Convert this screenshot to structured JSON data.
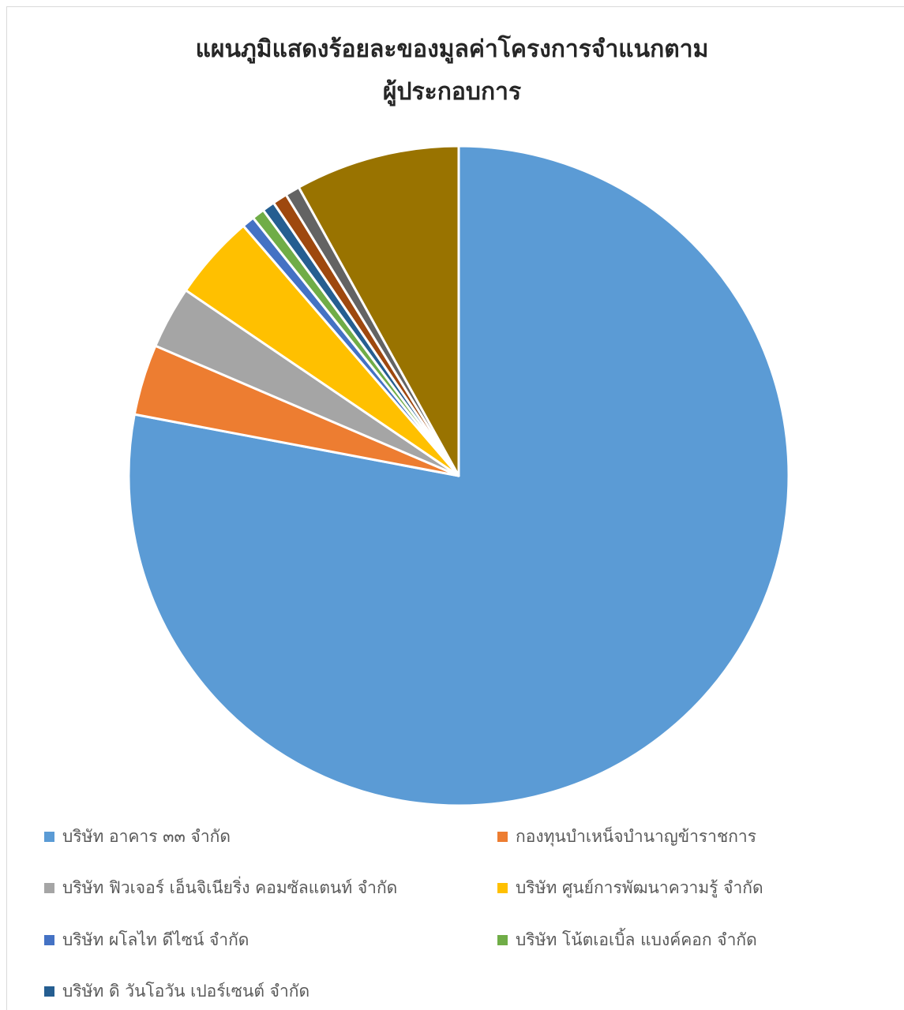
{
  "chart_data": {
    "type": "pie",
    "title_lines": [
      "แผนภูมิแสดงร้อยละของมูลค่าโครงการจำแนกตาม",
      "ผู้ประกอบการ"
    ],
    "legend_position": "bottom",
    "slices": [
      {
        "name": "บริษัท อาคาร ๓๓ จำกัด",
        "value": 76.5,
        "color": "#5B9BD5",
        "in_legend": true
      },
      {
        "name": "กองทุนบำเหน็จบำนาญข้าราชการ",
        "value": 3.4,
        "color": "#ED7D31",
        "in_legend": true
      },
      {
        "name": "บริษัท ฟิวเจอร์ เอ็นจิเนียริ่ง คอมซัลแตนท์ จำกัด",
        "value": 3.0,
        "color": "#A5A5A5",
        "in_legend": true
      },
      {
        "name": "บริษัท ศูนย์การพัฒนาความรู้ จำกัด",
        "value": 4.1,
        "color": "#FFC000",
        "in_legend": true
      },
      {
        "name": "บริษัท ผโลไท ดีไซน์ จำกัด",
        "value": 0.6,
        "color": "#4472C4",
        "in_legend": true
      },
      {
        "name": "บริษัท โน้ตเอเบิ้ล แบงค์คอก จำกัด",
        "value": 0.6,
        "color": "#70AD47",
        "in_legend": true
      },
      {
        "name": "บริษัท ดิ วันโอวัน เปอร์เซนต์ จำกัด",
        "value": 0.6,
        "color": "#255E91",
        "in_legend": true
      },
      {
        "name": "",
        "value": 0.7,
        "color": "#9E480E",
        "in_legend": false
      },
      {
        "name": "",
        "value": 0.7,
        "color": "#636363",
        "in_legend": false
      },
      {
        "name": "",
        "value": 7.9,
        "color": "#997300",
        "in_legend": false
      }
    ]
  }
}
